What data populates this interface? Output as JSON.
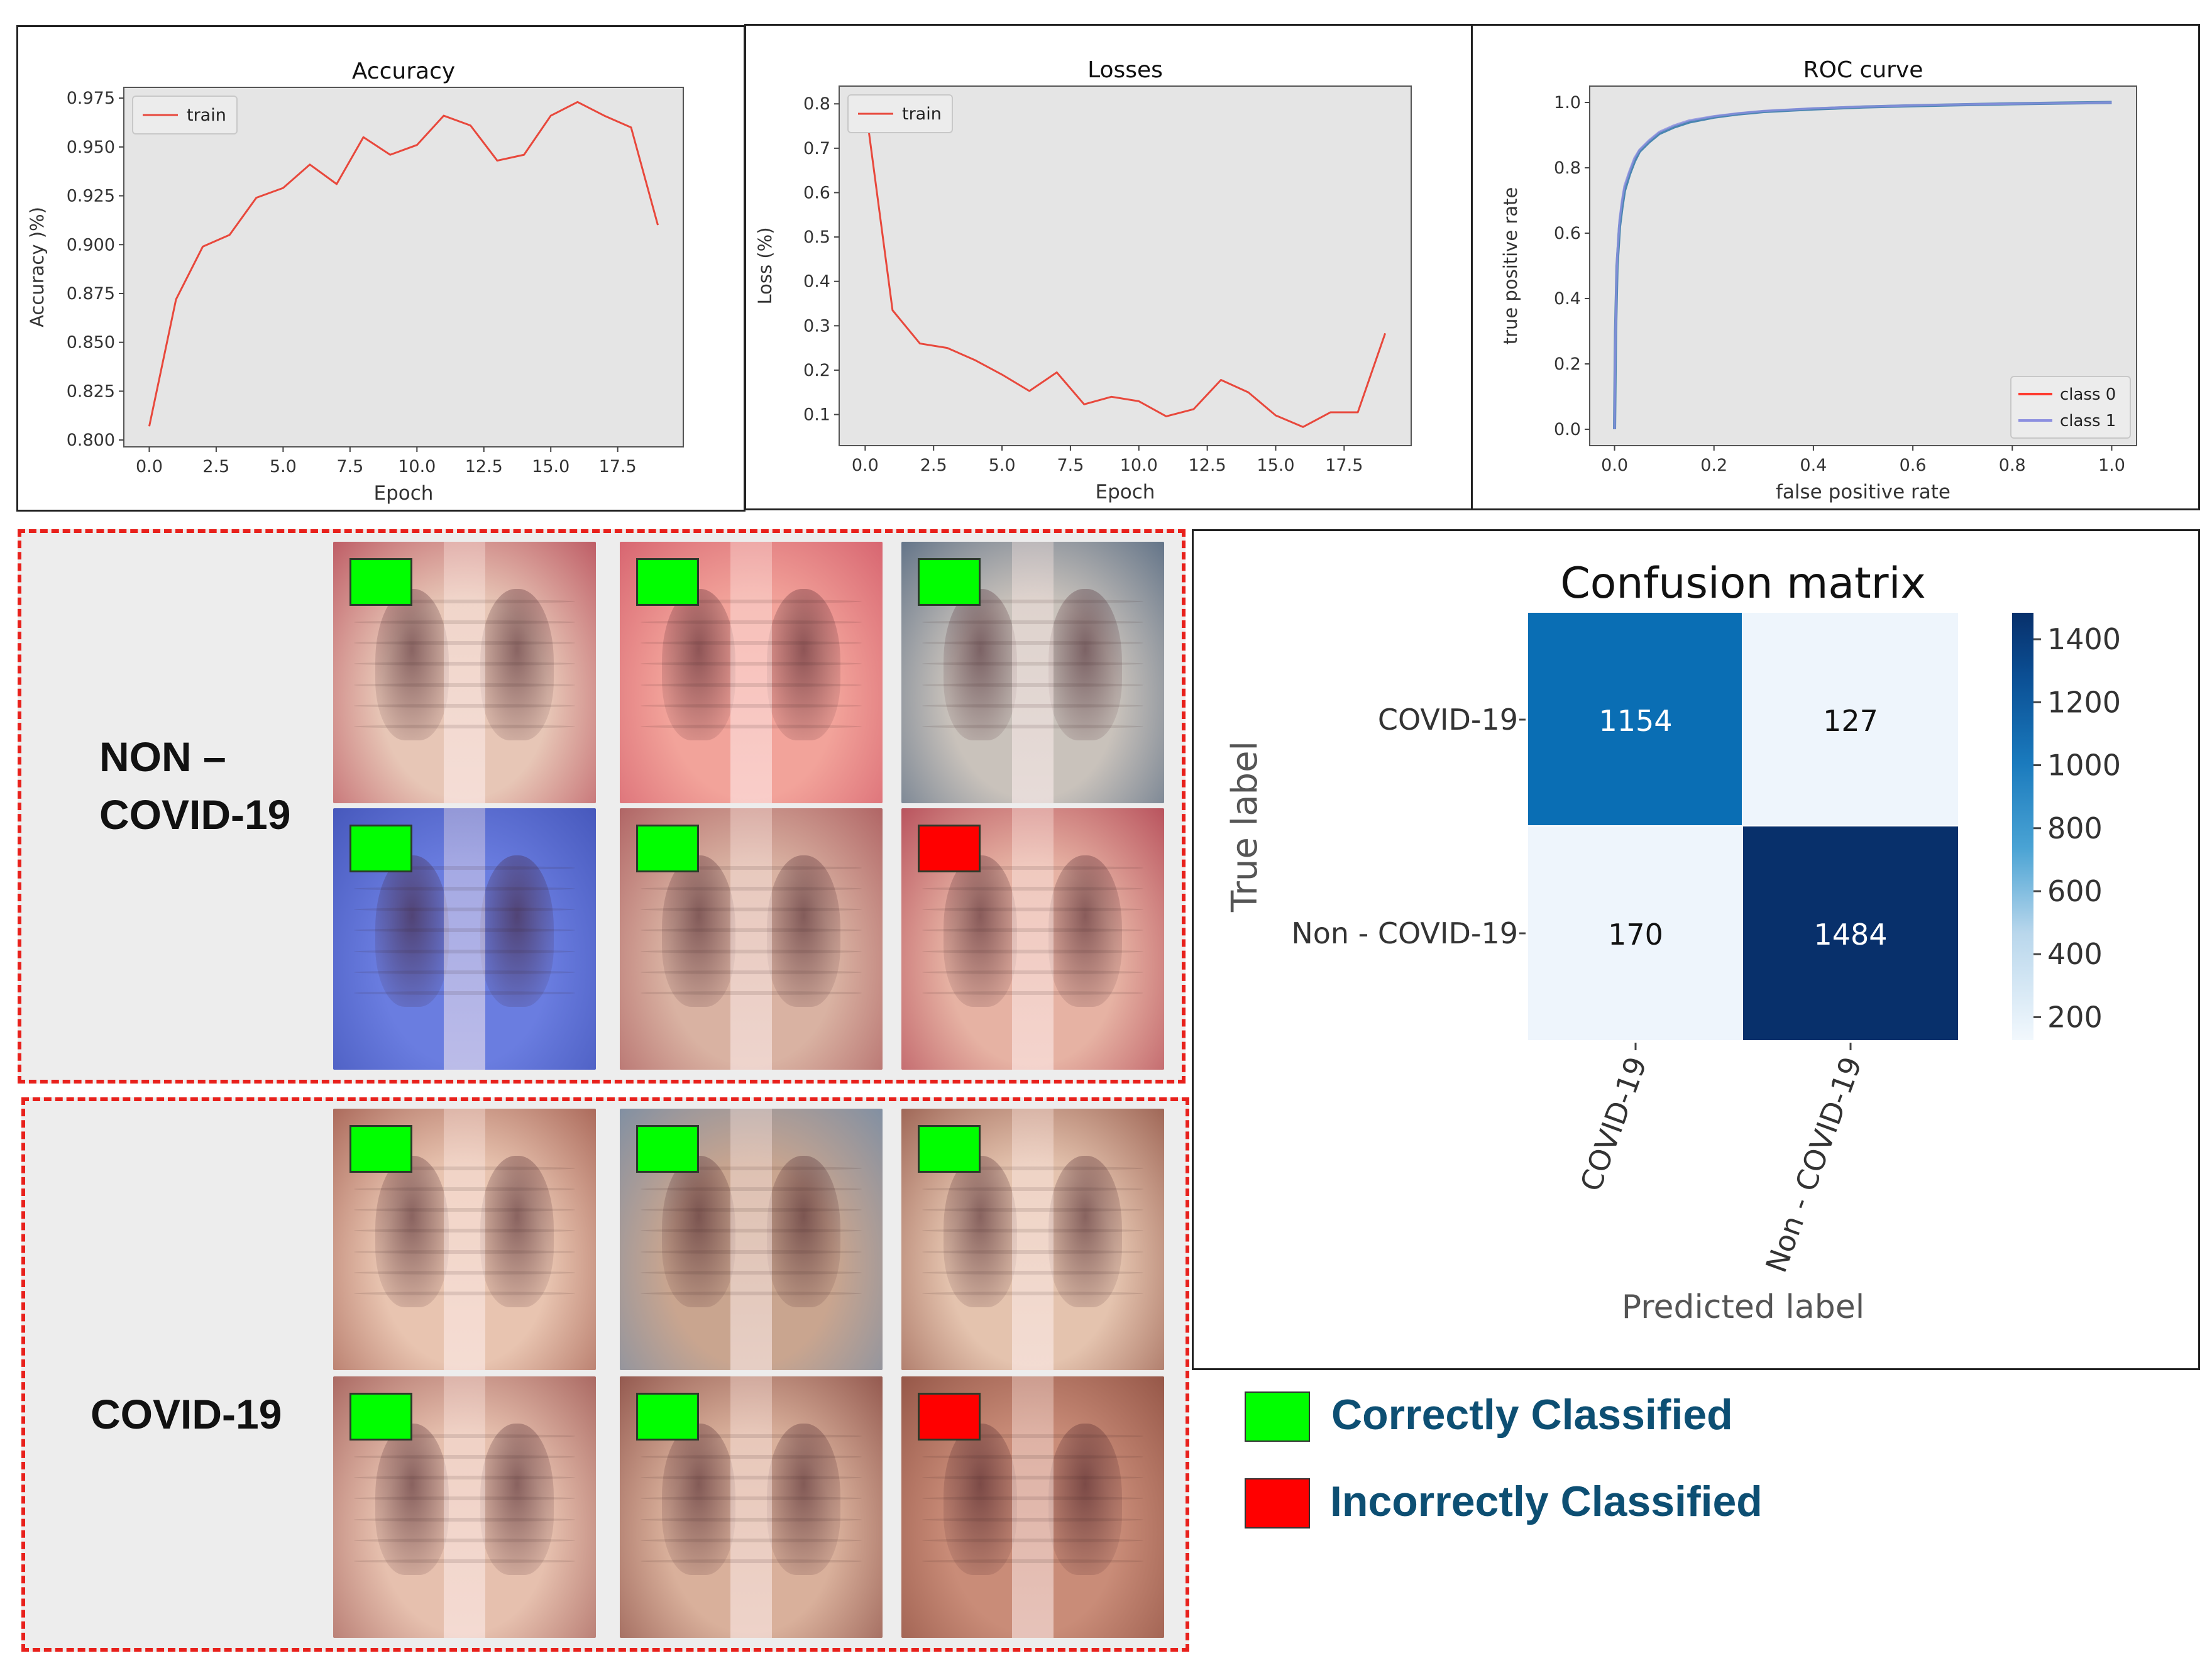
{
  "colors": {
    "correct": "#00ff00",
    "incorrect": "#ff0000",
    "train_line": "#e8483c",
    "class0": "#ff3b2f",
    "class1": "#8c8fe0",
    "cm_dark": "#08306b",
    "cm_mid": "#0a6eb4",
    "cm_light": "#eef5fc"
  },
  "chart_data": [
    {
      "type": "line",
      "title": "Accuracy",
      "xlabel": "Epoch",
      "ylabel": "Accuracy )%)",
      "legend": [
        "train"
      ],
      "legend_position": "top-left",
      "xlim": [
        -0.95,
        19.95
      ],
      "ylim": [
        0.7965,
        0.9805
      ],
      "xticks": [
        0.0,
        2.5,
        5.0,
        7.5,
        10.0,
        12.5,
        15.0,
        17.5
      ],
      "xtick_labels": [
        "0.0",
        "2.5",
        "5.0",
        "7.5",
        "10.0",
        "12.5",
        "15.0",
        "17.5"
      ],
      "yticks": [
        0.8,
        0.825,
        0.85,
        0.875,
        0.9,
        0.925,
        0.95,
        0.975
      ],
      "ytick_labels": [
        "0.800",
        "0.825",
        "0.850",
        "0.875",
        "0.900",
        "0.925",
        "0.950",
        "0.975"
      ],
      "series": [
        {
          "name": "train",
          "x": [
            0,
            1,
            2,
            3,
            4,
            5,
            6,
            7,
            8,
            9,
            10,
            11,
            12,
            13,
            14,
            15,
            16,
            17,
            18,
            19
          ],
          "values": [
            0.807,
            0.872,
            0.899,
            0.905,
            0.924,
            0.929,
            0.941,
            0.931,
            0.955,
            0.946,
            0.951,
            0.966,
            0.961,
            0.943,
            0.946,
            0.966,
            0.973,
            0.966,
            0.96,
            0.91
          ]
        }
      ]
    },
    {
      "type": "line",
      "title": "Losses",
      "xlabel": "Epoch",
      "ylabel": "Loss (%)",
      "legend": [
        "train"
      ],
      "legend_position": "top-left",
      "xlim": [
        -0.95,
        19.95
      ],
      "ylim": [
        0.03,
        0.84
      ],
      "xticks": [
        0.0,
        2.5,
        5.0,
        7.5,
        10.0,
        12.5,
        15.0,
        17.5
      ],
      "xtick_labels": [
        "0.0",
        "2.5",
        "5.0",
        "7.5",
        "10.0",
        "12.5",
        "15.0",
        "17.5"
      ],
      "yticks": [
        0.1,
        0.2,
        0.3,
        0.4,
        0.5,
        0.6,
        0.7,
        0.8
      ],
      "ytick_labels": [
        "0.1",
        "0.2",
        "0.3",
        "0.4",
        "0.5",
        "0.6",
        "0.7",
        "0.8"
      ],
      "series": [
        {
          "name": "train",
          "x": [
            0,
            1,
            2,
            3,
            4,
            5,
            6,
            7,
            8,
            9,
            10,
            11,
            12,
            13,
            14,
            15,
            16,
            17,
            18,
            19
          ],
          "values": [
            0.8,
            0.335,
            0.26,
            0.25,
            0.223,
            0.19,
            0.153,
            0.195,
            0.123,
            0.14,
            0.13,
            0.096,
            0.112,
            0.178,
            0.15,
            0.098,
            0.072,
            0.105,
            0.105,
            0.283
          ]
        }
      ]
    },
    {
      "type": "line",
      "title": "ROC curve",
      "xlabel": "false positive rate",
      "ylabel": "true positive rate",
      "legend": [
        "class 0",
        "class 1"
      ],
      "legend_position": "bottom-right",
      "xlim": [
        -0.05,
        1.05
      ],
      "ylim": [
        -0.05,
        1.05
      ],
      "xticks": [
        0.0,
        0.2,
        0.4,
        0.6,
        0.8,
        1.0
      ],
      "xtick_labels": [
        "0.0",
        "0.2",
        "0.4",
        "0.6",
        "0.8",
        "1.0"
      ],
      "yticks": [
        0.0,
        0.2,
        0.4,
        0.6,
        0.8,
        1.0
      ],
      "ytick_labels": [
        "0.0",
        "0.2",
        "0.4",
        "0.6",
        "0.8",
        "1.0"
      ],
      "series": [
        {
          "name": "class 0",
          "x": [
            0.0,
            0.002,
            0.005,
            0.01,
            0.015,
            0.02,
            0.03,
            0.04,
            0.05,
            0.07,
            0.09,
            0.12,
            0.15,
            0.2,
            0.25,
            0.3,
            0.4,
            0.5,
            0.6,
            0.7,
            0.8,
            0.9,
            1.0
          ],
          "values": [
            0.0,
            0.3,
            0.5,
            0.62,
            0.68,
            0.73,
            0.78,
            0.82,
            0.85,
            0.88,
            0.905,
            0.925,
            0.94,
            0.955,
            0.965,
            0.972,
            0.98,
            0.986,
            0.99,
            0.993,
            0.996,
            0.998,
            1.0
          ]
        },
        {
          "name": "class 1",
          "x": [
            0.0,
            0.002,
            0.005,
            0.01,
            0.015,
            0.02,
            0.03,
            0.04,
            0.05,
            0.07,
            0.09,
            0.12,
            0.15,
            0.2,
            0.25,
            0.3,
            0.4,
            0.5,
            0.6,
            0.7,
            0.8,
            0.9,
            1.0
          ],
          "values": [
            0.0,
            0.32,
            0.52,
            0.64,
            0.7,
            0.745,
            0.79,
            0.83,
            0.855,
            0.885,
            0.91,
            0.93,
            0.945,
            0.958,
            0.967,
            0.974,
            0.982,
            0.987,
            0.991,
            0.994,
            0.996,
            0.998,
            1.0
          ]
        }
      ]
    },
    {
      "type": "heatmap",
      "title": "Confusion matrix",
      "xlabel": "Predicted label",
      "ylabel": "True label",
      "row_labels": [
        "COVID-19",
        "Non - COVID-19"
      ],
      "col_labels": [
        "COVID-19",
        "Non - COVID-19"
      ],
      "values": [
        [
          1154,
          127
        ],
        [
          170,
          1484
        ]
      ],
      "colorbar_range": [
        127,
        1484
      ],
      "colorbar_ticks": [
        200,
        400,
        600,
        800,
        1000,
        1200,
        1400
      ],
      "colorbar_tick_labels": [
        "200",
        "400",
        "600",
        "800",
        "1000",
        "1200",
        "1400"
      ]
    }
  ],
  "samples": {
    "non_covid": {
      "label": "NON –\nCOVID-19",
      "results": [
        "correct",
        "correct",
        "correct",
        "correct",
        "correct",
        "incorrect"
      ]
    },
    "covid": {
      "label": "COVID-19",
      "results": [
        "correct",
        "correct",
        "correct",
        "correct",
        "correct",
        "incorrect"
      ]
    }
  },
  "legend": {
    "correct_label": "Correctly Classified",
    "incorrect_label": "Incorrectly Classified"
  }
}
